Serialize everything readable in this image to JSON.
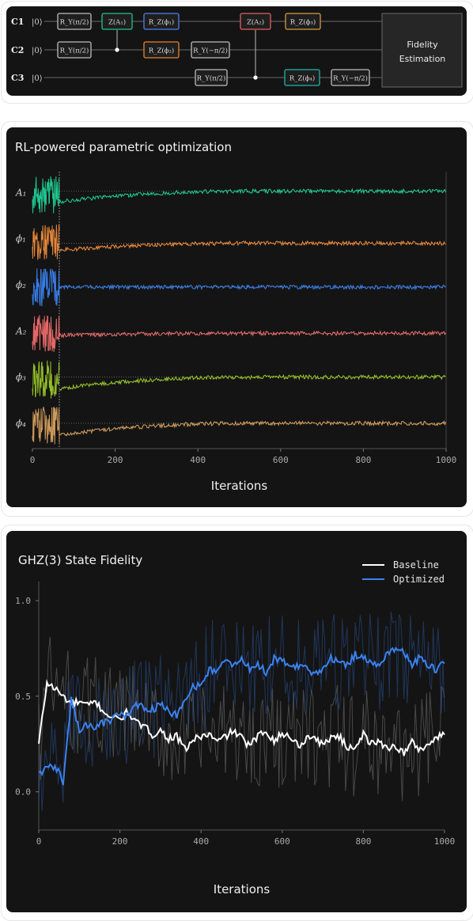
{
  "circuit": {
    "qubits": [
      {
        "label": "C1",
        "ket": "|0⟩"
      },
      {
        "label": "C2",
        "ket": "|0⟩"
      },
      {
        "label": "C3",
        "ket": "|0⟩"
      }
    ],
    "gates": [
      {
        "qubit": 0,
        "label": "R_Y(π/2)",
        "color": "#bdbdbd"
      },
      {
        "qubit": 0,
        "label": "Z(A₁)",
        "color": "#22c38e"
      },
      {
        "qubit": 0,
        "label": "R_Z(ϕ₁)",
        "color": "#4f7ff0"
      },
      {
        "qubit": 0,
        "label": "Z(A₂)",
        "color": "#e35d5d"
      },
      {
        "qubit": 0,
        "label": "R_Z(ϕ₃)",
        "color": "#d79a3c"
      },
      {
        "qubit": 1,
        "label": "R_Y(π/2)",
        "color": "#bdbdbd"
      },
      {
        "qubit": 1,
        "label": "R_Z(ϕ₂)",
        "color": "#e8832a"
      },
      {
        "qubit": 1,
        "label": "R_Y(−π/2)",
        "color": "#bdbdbd"
      },
      {
        "qubit": 2,
        "label": "R_Y(π/2)",
        "color": "#bdbdbd"
      },
      {
        "qubit": 2,
        "label": "R_Z(ϕ₄)",
        "color": "#1fb7a8"
      },
      {
        "qubit": 2,
        "label": "R_Y(−π/2)",
        "color": "#bdbdbd"
      }
    ],
    "fidelity_box": [
      "Fidelity",
      "Estimation"
    ]
  },
  "chart_data": [
    {
      "type": "line",
      "title": "RL-powered parametric optimization",
      "xlabel": "Iterations",
      "xlim": [
        0,
        1000
      ],
      "xticks": [
        0,
        200,
        400,
        600,
        800,
        1000
      ],
      "exploration_end": 65,
      "series": [
        {
          "name": "A₁",
          "color": "#1fcf95",
          "start_level": 0.35,
          "final_level": 0.58
        },
        {
          "name": "ϕ₁",
          "color": "#f08c3c",
          "start_level": 0.3,
          "final_level": 0.45
        },
        {
          "name": "ϕ₂",
          "color": "#3a82f0",
          "start_level": 0.5,
          "final_level": 0.5
        },
        {
          "name": "A₂",
          "color": "#ef6b6b",
          "start_level": 0.45,
          "final_level": 0.5
        },
        {
          "name": "ϕ₃",
          "color": "#9ac728",
          "start_level": 0.3,
          "final_level": 0.55
        },
        {
          "name": "ϕ₄",
          "color": "#d9a25f",
          "start_level": 0.3,
          "final_level": 0.55
        }
      ]
    },
    {
      "type": "line",
      "title": "GHZ(3) State Fidelity",
      "xlabel": "Iterations",
      "xlim": [
        0,
        1000
      ],
      "ylim": [
        -0.2,
        1.1
      ],
      "xticks": [
        0,
        200,
        400,
        600,
        800,
        1000
      ],
      "yticks": [
        0.0,
        0.5,
        1.0
      ],
      "yticklabels": [
        "0.0",
        "0.5",
        "1.0"
      ],
      "legend_position": "top-right",
      "series": [
        {
          "name": "Baseline",
          "color": "#ffffff",
          "x": [
            0,
            20,
            40,
            60,
            80,
            100,
            120,
            140,
            160,
            180,
            200,
            220,
            240,
            260,
            280,
            300,
            320,
            340,
            360,
            380,
            400,
            420,
            440,
            460,
            480,
            500,
            520,
            540,
            560,
            580,
            600,
            620,
            640,
            660,
            680,
            700,
            720,
            740,
            760,
            780,
            800,
            820,
            840,
            860,
            880,
            900,
            920,
            940,
            960,
            980,
            1000
          ],
          "values": [
            0.25,
            0.57,
            0.54,
            0.5,
            0.46,
            0.47,
            0.45,
            0.47,
            0.42,
            0.39,
            0.38,
            0.42,
            0.36,
            0.34,
            0.3,
            0.32,
            0.28,
            0.29,
            0.22,
            0.27,
            0.29,
            0.3,
            0.26,
            0.29,
            0.32,
            0.28,
            0.24,
            0.29,
            0.32,
            0.27,
            0.3,
            0.29,
            0.24,
            0.28,
            0.29,
            0.24,
            0.29,
            0.29,
            0.23,
            0.24,
            0.3,
            0.25,
            0.26,
            0.23,
            0.24,
            0.2,
            0.26,
            0.22,
            0.25,
            0.28,
            0.3
          ]
        },
        {
          "name": "Optimized",
          "color": "#3a82f0",
          "x": [
            0,
            20,
            40,
            60,
            80,
            100,
            120,
            140,
            160,
            180,
            200,
            220,
            240,
            260,
            280,
            300,
            320,
            340,
            360,
            380,
            400,
            420,
            440,
            460,
            480,
            500,
            520,
            540,
            560,
            580,
            600,
            620,
            640,
            660,
            680,
            700,
            720,
            740,
            760,
            780,
            800,
            820,
            840,
            860,
            880,
            900,
            920,
            940,
            960,
            980,
            1000
          ],
          "values": [
            0.1,
            0.12,
            0.14,
            0.05,
            0.48,
            0.32,
            0.35,
            0.34,
            0.36,
            0.38,
            0.4,
            0.4,
            0.45,
            0.44,
            0.43,
            0.46,
            0.42,
            0.4,
            0.47,
            0.55,
            0.55,
            0.64,
            0.64,
            0.68,
            0.66,
            0.7,
            0.64,
            0.67,
            0.62,
            0.7,
            0.68,
            0.66,
            0.66,
            0.64,
            0.62,
            0.64,
            0.7,
            0.69,
            0.66,
            0.72,
            0.7,
            0.68,
            0.65,
            0.72,
            0.76,
            0.72,
            0.67,
            0.7,
            0.66,
            0.64,
            0.67
          ]
        }
      ]
    }
  ]
}
